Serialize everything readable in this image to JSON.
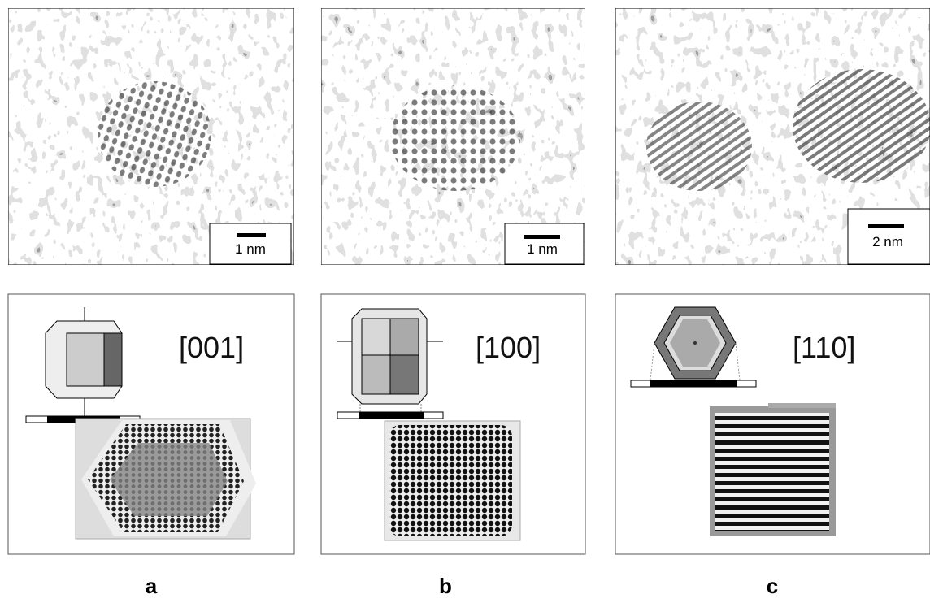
{
  "panels": [
    {
      "scale_bar": "1 nm",
      "direction": "[001]",
      "label": "a"
    },
    {
      "scale_bar": "1 nm",
      "direction": "[100]",
      "label": "b"
    },
    {
      "scale_bar": "2 nm",
      "direction": "[110]",
      "label": "c"
    }
  ]
}
